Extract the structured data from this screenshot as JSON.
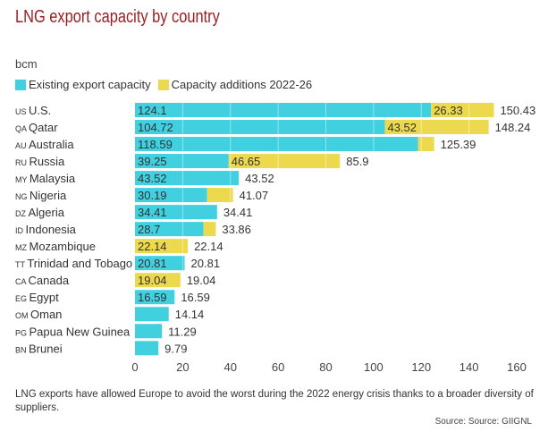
{
  "chart_data": {
    "type": "bar",
    "orientation": "horizontal",
    "stacked": true,
    "title": "LNG export capacity by country",
    "unit": "bcm",
    "categories": [
      {
        "code": "US",
        "name": "U.S."
      },
      {
        "code": "QA",
        "name": "Qatar"
      },
      {
        "code": "AU",
        "name": "Australia"
      },
      {
        "code": "RU",
        "name": "Russia"
      },
      {
        "code": "MY",
        "name": "Malaysia"
      },
      {
        "code": "NG",
        "name": "Nigeria"
      },
      {
        "code": "DZ",
        "name": "Algeria"
      },
      {
        "code": "ID",
        "name": "Indonesia"
      },
      {
        "code": "MZ",
        "name": "Mozambique"
      },
      {
        "code": "TT",
        "name": "Trinidad and Tobago"
      },
      {
        "code": "CA",
        "name": "Canada"
      },
      {
        "code": "EG",
        "name": "Egypt"
      },
      {
        "code": "OM",
        "name": "Oman"
      },
      {
        "code": "PG",
        "name": "Papua New Guinea"
      },
      {
        "code": "BN",
        "name": "Brunei"
      }
    ],
    "series": [
      {
        "name": "Existing export capacity",
        "color": "#41d0e0",
        "values": [
          124.1,
          104.72,
          118.59,
          39.25,
          43.52,
          30.19,
          34.41,
          28.7,
          0,
          20.81,
          0,
          16.59,
          14.14,
          11.29,
          9.79
        ]
      },
      {
        "name": "Capacity additions 2022-26",
        "color": "#ecd94e",
        "values": [
          26.33,
          43.52,
          6.8,
          46.65,
          0,
          10.88,
          0,
          5.16,
          22.14,
          0,
          19.04,
          0,
          0,
          0,
          0
        ]
      }
    ],
    "totals": [
      150.43,
      148.24,
      125.39,
      85.9,
      43.52,
      41.07,
      34.41,
      33.86,
      22.14,
      20.81,
      19.04,
      16.59,
      14.14,
      11.29,
      9.79
    ],
    "xlim": [
      0,
      160
    ],
    "xticks": [
      "0",
      "20",
      "40",
      "60",
      "80",
      "100",
      "120",
      "140",
      "160"
    ],
    "legend_position": "top-left"
  },
  "note": "LNG exports have allowed Europe to avoid the worst during the 2022 energy crisis thanks to a broader diversity of suppliers.",
  "source": "Source: Source: GIIGNL"
}
